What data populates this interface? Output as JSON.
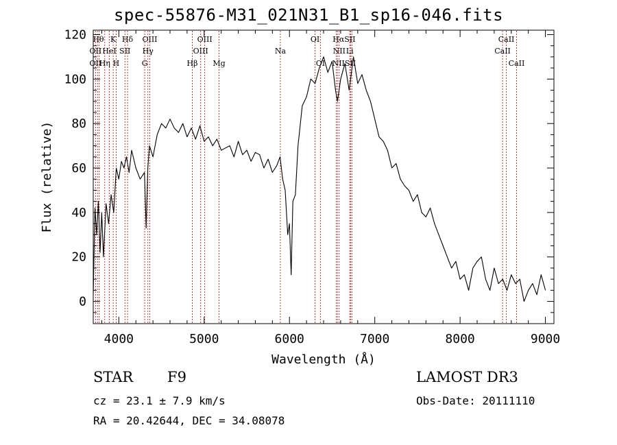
{
  "chart_data": {
    "type": "line",
    "title": "spec-55876-M31_021N31_B1_sp16-046.fits",
    "xlabel": "Wavelength (Å)",
    "ylabel": "Flux (relative)",
    "xlim": [
      3700,
      9100
    ],
    "ylim": [
      -10,
      122
    ],
    "xticks": [
      4000,
      5000,
      6000,
      7000,
      8000,
      9000
    ],
    "yticks": [
      0,
      20,
      40,
      60,
      80,
      100,
      120
    ],
    "series": [
      {
        "name": "spectrum",
        "x": [
          3700,
          3720,
          3740,
          3760,
          3780,
          3800,
          3820,
          3850,
          3880,
          3910,
          3940,
          3970,
          4000,
          4030,
          4060,
          4090,
          4120,
          4150,
          4200,
          4250,
          4300,
          4320,
          4340,
          4360,
          4400,
          4450,
          4500,
          4550,
          4600,
          4650,
          4700,
          4750,
          4800,
          4850,
          4900,
          4950,
          5000,
          5050,
          5100,
          5150,
          5200,
          5250,
          5300,
          5350,
          5400,
          5450,
          5500,
          5550,
          5600,
          5650,
          5700,
          5750,
          5800,
          5850,
          5890,
          5920,
          5950,
          5980,
          6000,
          6020,
          6040,
          6070,
          6100,
          6150,
          6200,
          6250,
          6300,
          6350,
          6400,
          6450,
          6500,
          6540,
          6563,
          6600,
          6650,
          6700,
          6750,
          6800,
          6850,
          6900,
          6950,
          7000,
          7050,
          7100,
          7150,
          7200,
          7250,
          7300,
          7350,
          7400,
          7450,
          7500,
          7550,
          7600,
          7650,
          7700,
          7750,
          7800,
          7850,
          7900,
          7950,
          8000,
          8050,
          8100,
          8150,
          8200,
          8250,
          8300,
          8350,
          8400,
          8450,
          8500,
          8550,
          8600,
          8650,
          8700,
          8750,
          8800,
          8850,
          8900,
          8950,
          9000
        ],
        "y": [
          3,
          42,
          30,
          45,
          22,
          40,
          20,
          44,
          35,
          48,
          40,
          60,
          55,
          63,
          60,
          65,
          58,
          68,
          60,
          55,
          58,
          33,
          60,
          70,
          65,
          75,
          80,
          78,
          82,
          78,
          76,
          80,
          74,
          78,
          73,
          79,
          72,
          74,
          70,
          73,
          68,
          69,
          70,
          65,
          72,
          66,
          68,
          63,
          67,
          66,
          60,
          64,
          58,
          61,
          65,
          55,
          50,
          30,
          35,
          12,
          45,
          48,
          70,
          88,
          92,
          100,
          98,
          105,
          110,
          103,
          108,
          95,
          90,
          100,
          107,
          95,
          110,
          98,
          102,
          95,
          90,
          82,
          74,
          72,
          68,
          60,
          62,
          55,
          52,
          50,
          45,
          48,
          40,
          38,
          42,
          35,
          30,
          25,
          20,
          15,
          18,
          10,
          12,
          5,
          15,
          18,
          20,
          10,
          5,
          15,
          8,
          10,
          5,
          12,
          8,
          10,
          0,
          5,
          8,
          3,
          12,
          5
        ]
      }
    ],
    "lines": [
      {
        "wave": 3727,
        "labels": [
          "OII"
        ]
      },
      {
        "wave": 3750,
        "labels": [
          "Hθ"
        ]
      },
      {
        "wave": 3770,
        "labels": [
          "OII"
        ]
      },
      {
        "wave": 3835,
        "labels": [
          "Hη"
        ]
      },
      {
        "wave": 3889,
        "labels": [
          "HeI"
        ]
      },
      {
        "wave": 3934,
        "labels": [
          "K"
        ]
      },
      {
        "wave": 3969,
        "labels": [
          "H"
        ]
      },
      {
        "wave": 4072,
        "labels": [
          "SII"
        ]
      },
      {
        "wave": 4102,
        "labels": [
          "Hδ"
        ]
      },
      {
        "wave": 4304,
        "labels": [
          "G"
        ]
      },
      {
        "wave": 4341,
        "labels": [
          "Hγ"
        ]
      },
      {
        "wave": 4363,
        "labels": [
          "OIII"
        ]
      },
      {
        "wave": 4861,
        "labels": [
          "Hβ"
        ]
      },
      {
        "wave": 4959,
        "labels": [
          "OIII"
        ]
      },
      {
        "wave": 5007,
        "labels": [
          "OIII"
        ]
      },
      {
        "wave": 5175,
        "labels": [
          "Mg"
        ]
      },
      {
        "wave": 5893,
        "labels": [
          "Na"
        ]
      },
      {
        "wave": 6300,
        "labels": [
          "OI"
        ]
      },
      {
        "wave": 6363,
        "labels": [
          "OI"
        ]
      },
      {
        "wave": 6548,
        "labels": [
          "NII"
        ]
      },
      {
        "wave": 6563,
        "labels": [
          "Hα"
        ]
      },
      {
        "wave": 6583,
        "labels": [
          "NII"
        ]
      },
      {
        "wave": 6707,
        "labels": [
          "Li"
        ]
      },
      {
        "wave": 6716,
        "labels": [
          "SII"
        ]
      },
      {
        "wave": 6731,
        "labels": [
          "SII"
        ]
      },
      {
        "wave": 8498,
        "labels": [
          "CaII"
        ]
      },
      {
        "wave": 8542,
        "labels": [
          "CaII"
        ]
      },
      {
        "wave": 8662,
        "labels": [
          "CaII"
        ]
      }
    ],
    "line_labels": [
      {
        "text": "Hθ",
        "wave": 3760,
        "row": 0
      },
      {
        "text": "K",
        "wave": 3934,
        "row": 0
      },
      {
        "text": "Hδ",
        "wave": 4102,
        "row": 0
      },
      {
        "text": "OIII",
        "wave": 4363,
        "row": 0
      },
      {
        "text": "OIII",
        "wave": 5007,
        "row": 0
      },
      {
        "text": "OI",
        "wave": 6300,
        "row": 0
      },
      {
        "text": "HαSII",
        "wave": 6640,
        "row": 0
      },
      {
        "text": "CaII",
        "wave": 8542,
        "row": 0
      },
      {
        "text": "OII",
        "wave": 3727,
        "row": 1
      },
      {
        "text": "HeI",
        "wave": 3889,
        "row": 1
      },
      {
        "text": "SII",
        "wave": 4072,
        "row": 1
      },
      {
        "text": "Hγ",
        "wave": 4341,
        "row": 1
      },
      {
        "text": "OIII",
        "wave": 4959,
        "row": 1
      },
      {
        "text": "Na",
        "wave": 5893,
        "row": 1
      },
      {
        "text": "NII",
        "wave": 6583,
        "row": 1
      },
      {
        "text": "Li",
        "wave": 6707,
        "row": 1
      },
      {
        "text": "CaII",
        "wave": 8498,
        "row": 1
      },
      {
        "text": "OII",
        "wave": 3727,
        "row": 2
      },
      {
        "text": "Hη",
        "wave": 3835,
        "row": 2
      },
      {
        "text": "H",
        "wave": 3969,
        "row": 2
      },
      {
        "text": "G",
        "wave": 4304,
        "row": 2
      },
      {
        "text": "Hβ",
        "wave": 4861,
        "row": 2
      },
      {
        "text": "Mg",
        "wave": 5175,
        "row": 2
      },
      {
        "text": "OI",
        "wave": 6363,
        "row": 2
      },
      {
        "text": "NIISII",
        "wave": 6640,
        "row": 2
      },
      {
        "text": "CaII",
        "wave": 8662,
        "row": 2
      }
    ]
  },
  "info": {
    "type": "STAR",
    "subclass": "F9",
    "survey": "LAMOST DR3",
    "cz": "cz = 23.1 ± 7.9 km/s",
    "obs_date": "Obs-Date: 20111110",
    "radec": "RA =  20.42644, DEC =  34.08078"
  },
  "colors": {
    "line_marker": "#b22222",
    "spectrum": "#000000"
  }
}
